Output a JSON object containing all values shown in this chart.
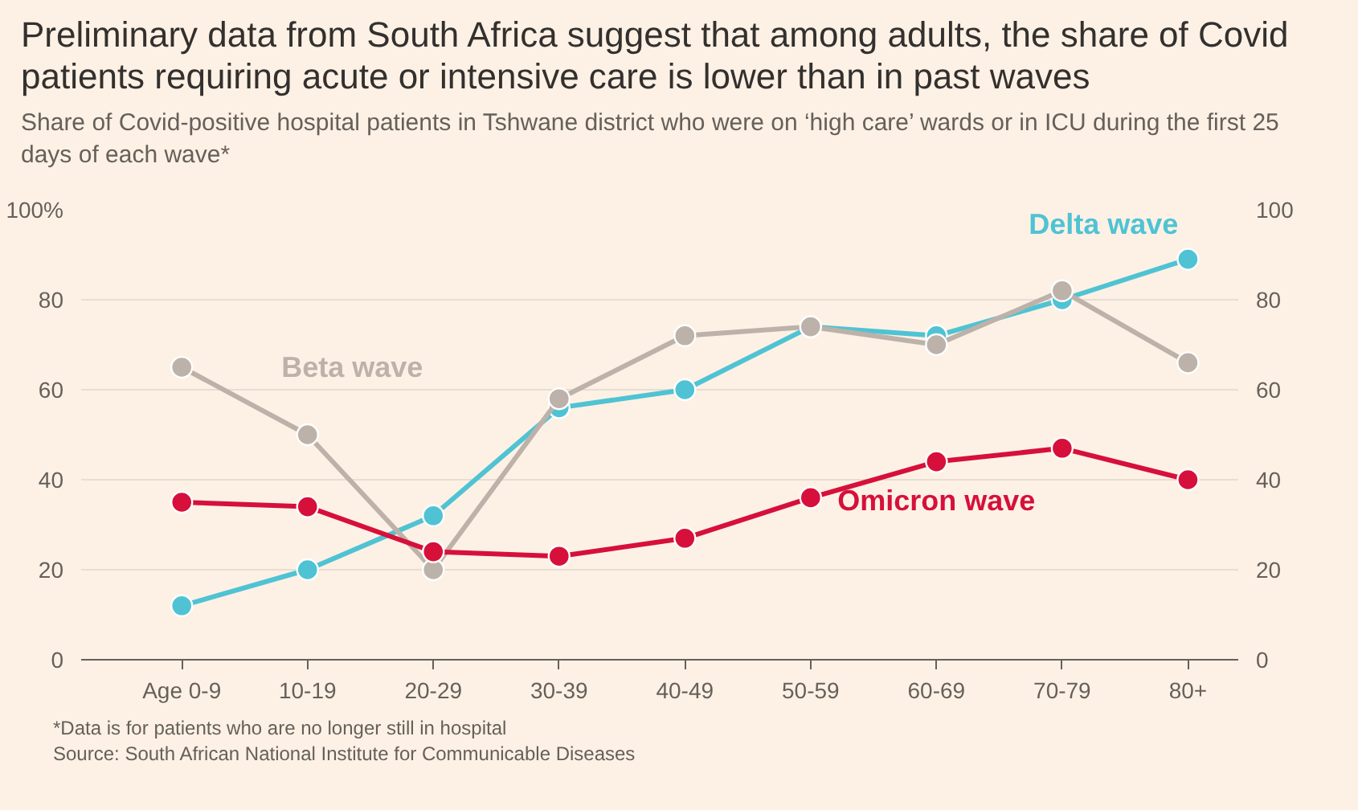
{
  "chart_data": {
    "type": "line",
    "title": "Preliminary data from South Africa suggest that among adults, the share of Covid patients requiring acute or intensive care is lower than in past waves",
    "subtitle": "Share of Covid-positive hospital patients in Tshwane district who were on ‘high care’ wards or in ICU during the first 25 days of each wave*",
    "categories": [
      "Age 0-9",
      "10-19",
      "20-29",
      "30-39",
      "40-49",
      "50-59",
      "60-69",
      "70-79",
      "80+"
    ],
    "series": [
      {
        "name": "Beta wave",
        "color": "#bcb2aa",
        "values": [
          65,
          50,
          20,
          58,
          72,
          74,
          70,
          82,
          66
        ]
      },
      {
        "name": "Delta wave",
        "color": "#4fc3d3",
        "values": [
          12,
          20,
          32,
          56,
          60,
          74,
          72,
          80,
          89
        ]
      },
      {
        "name": "Omicron wave",
        "color": "#d6103b",
        "values": [
          35,
          34,
          24,
          23,
          27,
          36,
          44,
          47,
          40
        ]
      }
    ],
    "ylim": [
      0,
      100
    ],
    "yticks": [
      0,
      20,
      40,
      60,
      80,
      {
        "value": 100,
        "label": "100%"
      }
    ],
    "y2lim": [
      0,
      100
    ],
    "y2ticks": [
      0,
      20,
      40,
      60,
      80,
      100
    ],
    "grid": "y",
    "marker": "circle",
    "line_style": "solid",
    "annotations": [
      "*Data is for patients who are no longer still in hospital",
      "Source: South African National Institute for Communicable Diseases"
    ]
  }
}
